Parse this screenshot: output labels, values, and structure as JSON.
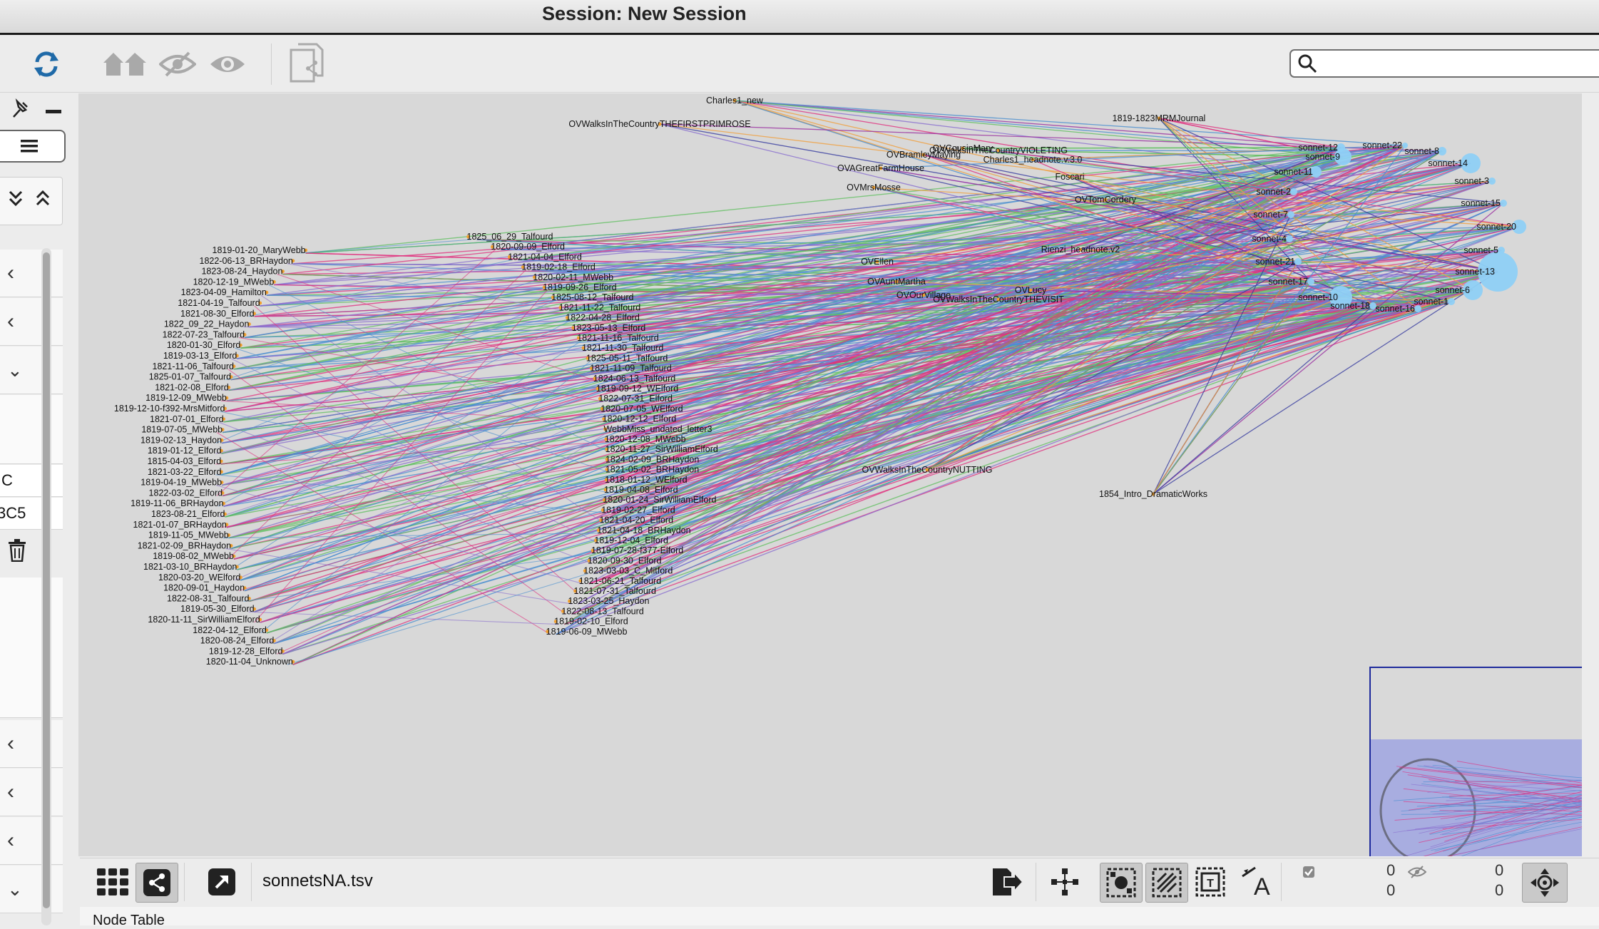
{
  "window": {
    "title": "Session: New Session"
  },
  "toolbar": {
    "buttons": [
      "refresh-icon",
      "home-icon",
      "hide-icon",
      "show-icon",
      "copy-document-icon"
    ],
    "search": {
      "value": "",
      "placeholder": ""
    }
  },
  "left_panel": {
    "partial_texts": [
      "C",
      "3C5"
    ]
  },
  "network": {
    "left_nodes": [
      "1819-01-20_MaryWebb",
      "1822-06-13_BRHaydon",
      "1823-08-24_Haydon",
      "1820-12-19_MWebb",
      "1823-04-09_Hamilton",
      "1821-04-19_Talfourd",
      "1821-08-30_Elford",
      "1822_09_22_Haydon",
      "1822-07-23_Talfourd",
      "1820-01-30_Elford",
      "1819-03-13_Elford",
      "1821-11-06_Talfourd",
      "1825-01-07_Talfourd",
      "1821-02-08_Elford",
      "1819-12-09_MWebb",
      "1819-12-10-f392-MrsMitford",
      "1821-07-01_Elford",
      "1819-07-05_MWebb",
      "1819-02-13_Haydon",
      "1819-01-12_Elford",
      "1815-04-03_Elford",
      "1821-03-22_Elford",
      "1819-04-19_MWebb",
      "1822-03-02_Elford",
      "1819-11-06_BRHaydon",
      "1823-08-21_Elford",
      "1821-01-07_BRHaydon",
      "1819-11-05_MWebb",
      "1821-02-09_BRHaydon",
      "1819-08-02_MWebb",
      "1821-03-10_BRHaydon",
      "1820-03-20_WElford",
      "1820-09-01_Haydon",
      "1822-08-31_Talfourd",
      "1819-05-30_Elford",
      "1820-11-11_SirWilliamElford",
      "1822-04-12_Elford",
      "1820-08-24_Elford",
      "1819-12-28_Elford",
      "1820-11-04_Unknown"
    ],
    "right_nodes": [
      "1825_06_29_Talfourd",
      "1820-09-09_Elford",
      "1821-04-04_Elford",
      "1819-02-18_Elford",
      "1820-02-11_MWebb",
      "1819-09-26_Elford",
      "1825-08-12_Talfourd",
      "1821-11-22_Talfourd",
      "1822-04-28_Elford",
      "1823-05-13_Elford",
      "1821-11-16_Talfourd",
      "1821-11-30_Talfourd",
      "1825-05-11_Talfourd",
      "1821-11-09_Talfourd",
      "1824-06-13_Talfourd",
      "1819-09-12_WElford",
      "1822-07-31_Elford",
      "1820-07-05_WElford",
      "1820-12-12_Elford",
      "WebbMiss_undated_letter3",
      "1820-12-08_MWebb",
      "1820-11-27_SirWilliamElford",
      "1824-02-09_BRHaydon",
      "1821-05-02_BRHaydon",
      "1818-01-12_WElford",
      "1819-04-08_Elford",
      "1820-01-24_SirWilliamElford",
      "1819-02-27_Elford",
      "1821-04-20_Elford",
      "1821-04-18_BRHaydon",
      "1819-12-04_Elford",
      "1819-07-28-f377-Elford",
      "1820-09-30_Elford",
      "1823-03-03_C_Mitford",
      "1821-06-21_Talfourd",
      "1821-07-31_Talfourd",
      "1823-03-25_Haydon",
      "1822-08-13_Talfourd",
      "1819-02-10_Elford",
      "1819-06-09_MWebb"
    ],
    "mid_nodes": [
      "Charles1_new",
      "OVWalksInTheCountryTHEFIRSTPRIMROSE",
      "1819-1823MRMJournal",
      "OVCousinMary",
      "OVWalksInTheCountryVIOLETING",
      "OVBramleyMaying",
      "Charles1_headnote.v.3.0",
      "OVAGreatFarmHouse",
      "Foscari",
      "OVMrsMosse",
      "OVTomCordery",
      "Rienzi_headnote.v2",
      "OVEllen",
      "OVAuntMartha",
      "OVLucy",
      "OVOurVillage",
      "OVWalksInTheCountryTHEVISIT",
      "OVWalksInTheCountryNUTTING",
      "1854_Intro_DramaticWorks"
    ],
    "sonnets": [
      "sonnet-12",
      "sonnet-22",
      "sonnet-8",
      "sonnet-9",
      "sonnet-14",
      "sonnet-11",
      "sonnet-3",
      "sonnet-2",
      "sonnet-15",
      "sonnet-7",
      "sonnet-20",
      "sonnet-4",
      "sonnet-5",
      "sonnet-21",
      "sonnet-13",
      "sonnet-17",
      "sonnet-6",
      "sonnet-10",
      "sonnet-1",
      "sonnet-18",
      "sonnet-16"
    ],
    "edge_colors": [
      "#4a8fd0",
      "#8a6fcf",
      "#e0317f",
      "#5fbf5f",
      "#f0a040",
      "#3a3fa0",
      "#9a2fa0"
    ]
  },
  "bottom_bar": {
    "filename": "sonnetsNA.tsv",
    "selected_count": "0",
    "selected_count_2": "0",
    "hidden_count": "0",
    "hidden_count_2": "0"
  },
  "table_panel": {
    "label": "Node Table"
  }
}
